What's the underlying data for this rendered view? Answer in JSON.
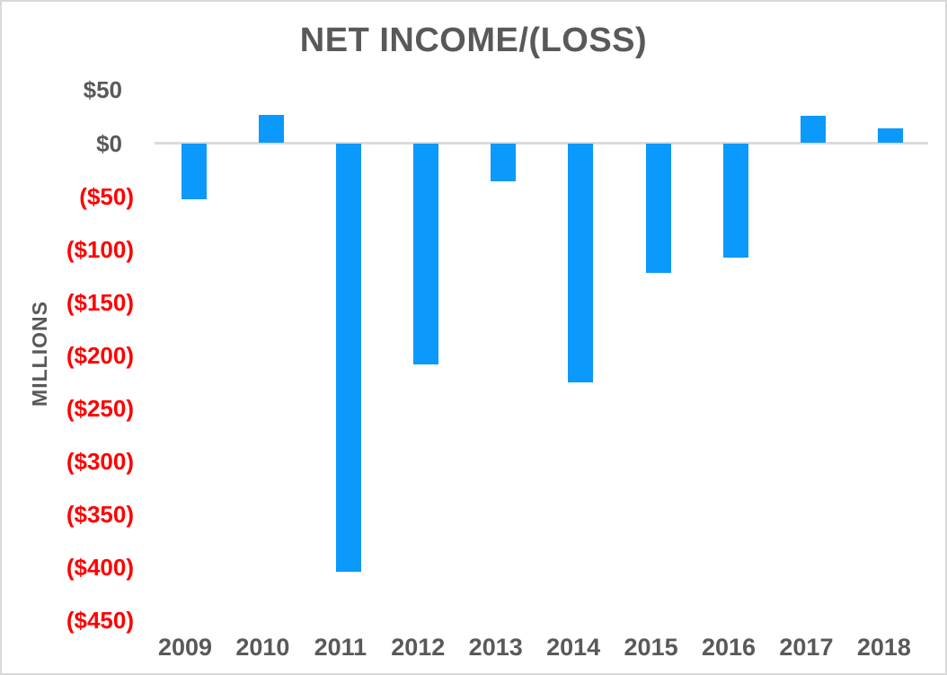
{
  "chart_data": {
    "type": "bar",
    "title": "NET INCOME/(LOSS)",
    "ylabel": "MILLIONS",
    "xlabel": "",
    "categories": [
      "2009",
      "2010",
      "2011",
      "2012",
      "2013",
      "2014",
      "2015",
      "2016",
      "2017",
      "2018"
    ],
    "values": [
      -53,
      27,
      -404,
      -209,
      -36,
      -226,
      -122,
      -108,
      26,
      14
    ],
    "units": "USD millions",
    "ylim": [
      -450,
      50
    ],
    "ytick_step": 50,
    "yticks": [
      {
        "value": 50,
        "label": "$50"
      },
      {
        "value": 0,
        "label": "$0"
      },
      {
        "value": -50,
        "label": "($50)"
      },
      {
        "value": -100,
        "label": "($100)"
      },
      {
        "value": -150,
        "label": "($150)"
      },
      {
        "value": -200,
        "label": "($200)"
      },
      {
        "value": -250,
        "label": "($250)"
      },
      {
        "value": -300,
        "label": "($300)"
      },
      {
        "value": -350,
        "label": "($350)"
      },
      {
        "value": -400,
        "label": "($400)"
      },
      {
        "value": -450,
        "label": "($450)"
      }
    ],
    "grid": "zero-line-only",
    "legend": "none",
    "colors": {
      "bar": "#0b99fb",
      "title": "#595959",
      "axis_label": "#595959",
      "positive_tick": "#595959",
      "negative_tick": "#ff0000",
      "category_label": "#595959",
      "zero_line": "#dbdbdb",
      "frame_border": "#d9d9d9",
      "background": "#ffffff"
    }
  }
}
